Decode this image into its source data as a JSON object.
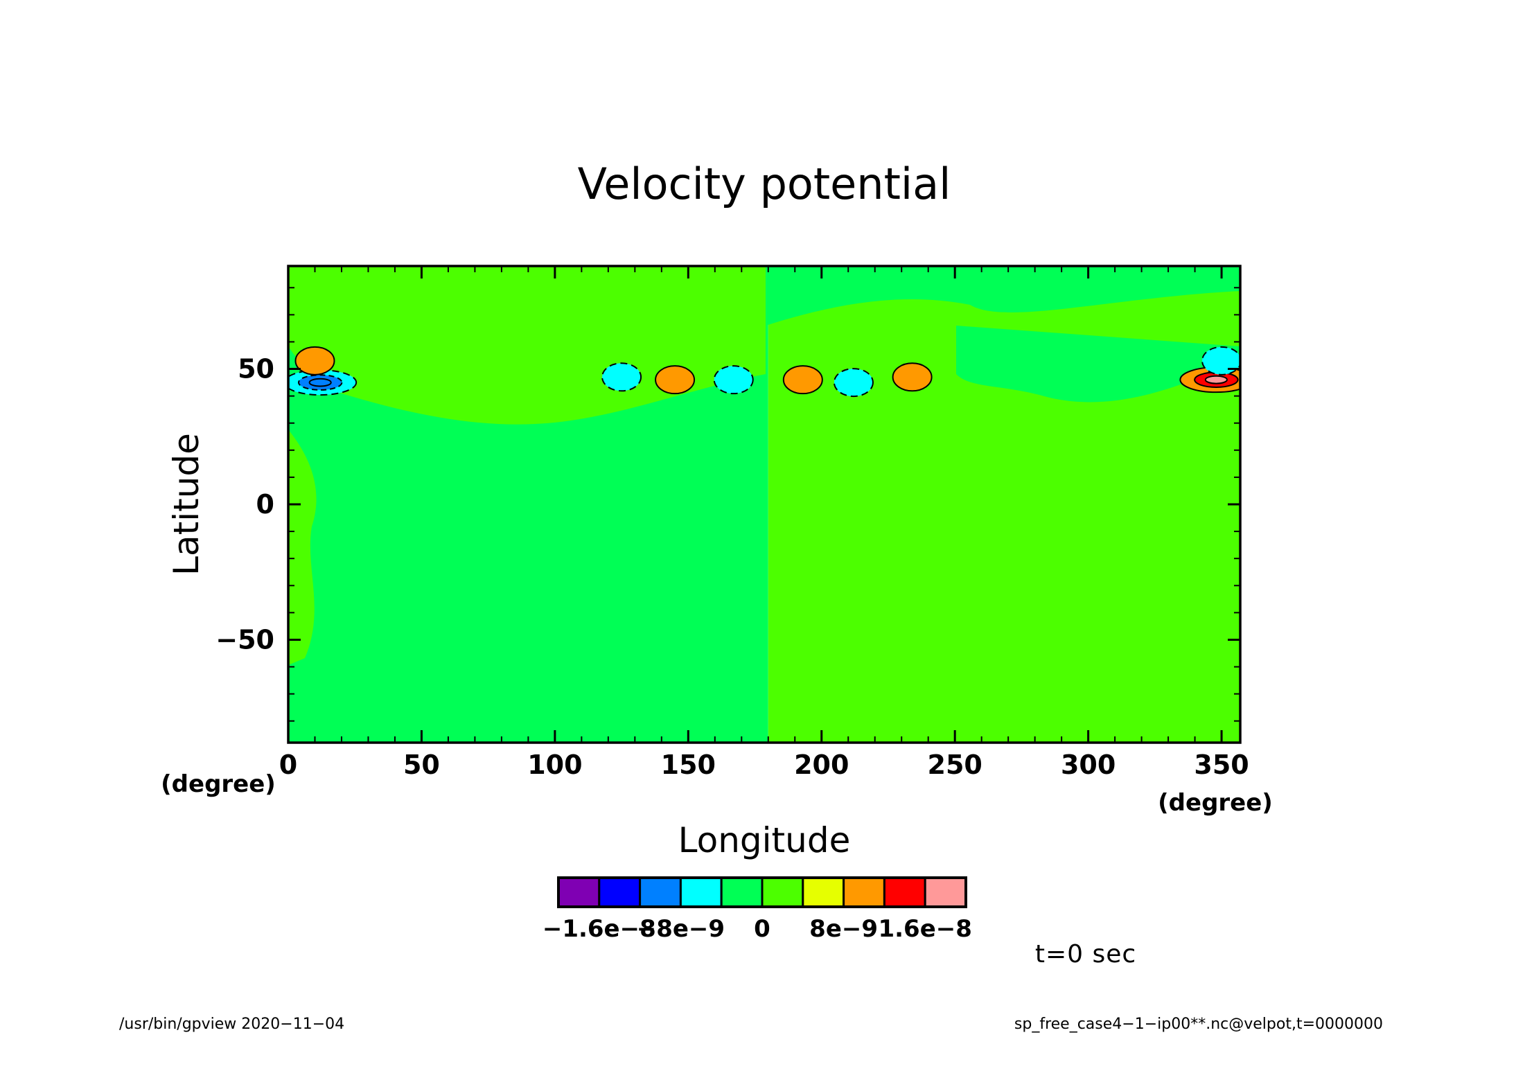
{
  "chart_data": {
    "type": "heatmap",
    "title": "Velocity potential",
    "xlabel": "Longitude",
    "ylabel": "Latitude",
    "x_unit": "(degree)",
    "y_unit": "(degree)",
    "xlim": [
      0,
      357
    ],
    "ylim": [
      -88,
      88
    ],
    "xticks": [
      "0",
      "50",
      "100",
      "150",
      "200",
      "250",
      "300",
      "350"
    ],
    "xtick_values": [
      0,
      50,
      100,
      150,
      200,
      250,
      300,
      350
    ],
    "yticks": [
      "50",
      "0",
      "−50"
    ],
    "ytick_values": [
      50,
      0,
      -50
    ],
    "background_split": {
      "lon": 180,
      "west_level": "-4e-9 to 0",
      "east_level": "0 to 4e-9"
    },
    "features": [
      {
        "lon": 12,
        "lat": 45,
        "kind": "negative",
        "peak": -1.2e-08,
        "label": "blue/purple low near 10E 45N"
      },
      {
        "lon": 10,
        "lat": 53,
        "kind": "positive",
        "peak": 6e-09
      },
      {
        "lon": 125,
        "lat": 47,
        "kind": "negative",
        "peak": -6e-09
      },
      {
        "lon": 145,
        "lat": 46,
        "kind": "positive",
        "peak": 5e-09
      },
      {
        "lon": 167,
        "lat": 46,
        "kind": "negative",
        "peak": -5e-09
      },
      {
        "lon": 193,
        "lat": 46,
        "kind": "positive",
        "peak": 5e-09
      },
      {
        "lon": 212,
        "lat": 45,
        "kind": "negative",
        "peak": -6e-09
      },
      {
        "lon": 234,
        "lat": 47,
        "kind": "positive",
        "peak": 8e-09
      },
      {
        "lon": 348,
        "lat": 46,
        "kind": "positive",
        "peak": 1.6e-08,
        "label": "red high near 350E 46N"
      },
      {
        "lon": 350,
        "lat": 53,
        "kind": "negative",
        "peak": -6e-09
      }
    ],
    "colorbar": {
      "colors": [
        "#7f00b3",
        "#0000ff",
        "#0080ff",
        "#00ffff",
        "#00ff55",
        "#4cff00",
        "#e6ff00",
        "#ff9900",
        "#ff0000",
        "#ff9999"
      ],
      "labels": [
        "−1.6e−8",
        "−8e−9",
        "0",
        "8e−9",
        "1.6e−8"
      ],
      "label_values": [
        -1.6e-08,
        -8e-09,
        0,
        8e-09,
        1.6e-08
      ]
    },
    "grid": false,
    "legend": "colorbar-bottom"
  },
  "annotations": {
    "time": "t=0 sec",
    "footer_left": "/usr/bin/gpview   2020−11−04",
    "footer_right": "sp_free_case4−1−ip00**.nc@velpot,t=0000000"
  }
}
